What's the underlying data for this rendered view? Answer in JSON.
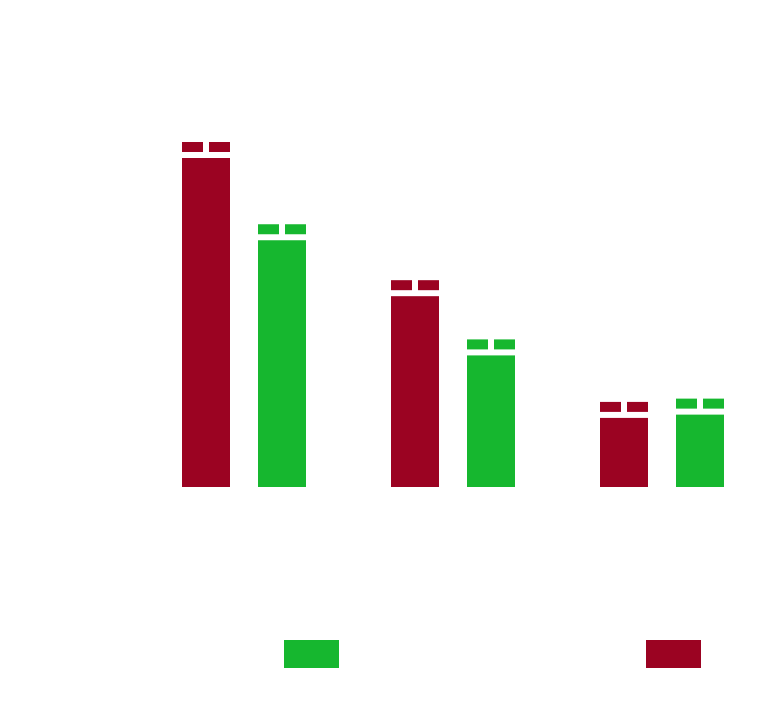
{
  "chart_data": {
    "type": "bar",
    "title": "",
    "xlabel": "",
    "ylabel": "",
    "categories": [
      "",
      "",
      ""
    ],
    "ylim": [
      0,
      100
    ],
    "grid": false,
    "legend": {
      "placement": "bottom",
      "entries": [
        {
          "label": "",
          "color": "#16b72f"
        },
        {
          "label": "",
          "color": "#9b0322"
        }
      ]
    },
    "series": [
      {
        "color": "#9b0322",
        "values": [
          100,
          58,
          21
        ],
        "label_marker": "two-block"
      },
      {
        "color": "#16b72f",
        "values": [
          75,
          40,
          22
        ],
        "label_marker": "two-block"
      }
    ]
  }
}
